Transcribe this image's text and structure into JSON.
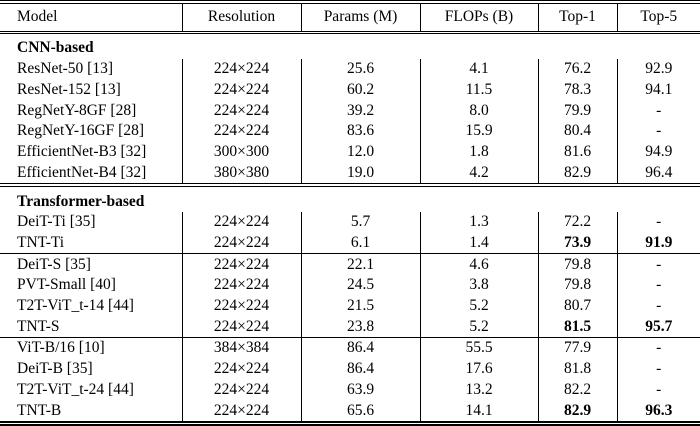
{
  "header": {
    "model": "Model",
    "resolution": "Resolution",
    "params": "Params (M)",
    "flops": "FLOPs (B)",
    "top1": "Top-1",
    "top5": "Top-5"
  },
  "colors": {
    "text": "#000000",
    "rules": "#000000",
    "background": "#ffffff"
  },
  "sections": [
    {
      "label": "CNN-based",
      "groups": [
        [
          {
            "model": "ResNet-50 [13]",
            "resolution": "224×224",
            "params": "25.6",
            "flops": "4.1",
            "top1": "76.2",
            "top5": "92.9"
          },
          {
            "model": "ResNet-152 [13]",
            "resolution": "224×224",
            "params": "60.2",
            "flops": "11.5",
            "top1": "78.3",
            "top5": "94.1"
          },
          {
            "model": "RegNetY-8GF [28]",
            "resolution": "224×224",
            "params": "39.2",
            "flops": "8.0",
            "top1": "79.9",
            "top5": "-"
          },
          {
            "model": "RegNetY-16GF [28]",
            "resolution": "224×224",
            "params": "83.6",
            "flops": "15.9",
            "top1": "80.4",
            "top5": "-"
          },
          {
            "model": "EfficientNet-B3 [32]",
            "resolution": "300×300",
            "params": "12.0",
            "flops": "1.8",
            "top1": "81.6",
            "top5": "94.9"
          },
          {
            "model": "EfficientNet-B4 [32]",
            "resolution": "380×380",
            "params": "19.0",
            "flops": "4.2",
            "top1": "82.9",
            "top5": "96.4"
          }
        ]
      ]
    },
    {
      "label": "Transformer-based",
      "groups": [
        [
          {
            "model": "DeiT-Ti [35]",
            "resolution": "224×224",
            "params": "5.7",
            "flops": "1.3",
            "top1": "72.2",
            "top5": "-"
          },
          {
            "model": "TNT-Ti",
            "resolution": "224×224",
            "params": "6.1",
            "flops": "1.4",
            "top1": "73.9",
            "top5": "91.9"
          }
        ],
        [
          {
            "model": "DeiT-S [35]",
            "resolution": "224×224",
            "params": "22.1",
            "flops": "4.6",
            "top1": "79.8",
            "top5": "-"
          },
          {
            "model": "PVT-Small [40]",
            "resolution": "224×224",
            "params": "24.5",
            "flops": "3.8",
            "top1": "79.8",
            "top5": "-"
          },
          {
            "model": "T2T-ViT_t-14 [44]",
            "resolution": "224×224",
            "params": "21.5",
            "flops": "5.2",
            "top1": "80.7",
            "top5": "-"
          },
          {
            "model": "TNT-S",
            "resolution": "224×224",
            "params": "23.8",
            "flops": "5.2",
            "top1": "81.5",
            "top5": "95.7"
          }
        ],
        [
          {
            "model": "ViT-B/16 [10]",
            "resolution": "384×384",
            "params": "86.4",
            "flops": "55.5",
            "top1": "77.9",
            "top5": "-"
          },
          {
            "model": "DeiT-B [35]",
            "resolution": "224×224",
            "params": "86.4",
            "flops": "17.6",
            "top1": "81.8",
            "top5": "-"
          },
          {
            "model": "T2T-ViT_t-24 [44]",
            "resolution": "224×224",
            "params": "63.9",
            "flops": "13.2",
            "top1": "82.2",
            "top5": "-"
          },
          {
            "model": "TNT-B",
            "resolution": "224×224",
            "params": "65.6",
            "flops": "14.1",
            "top1": "82.9",
            "top5": "96.3"
          }
        ]
      ]
    }
  ]
}
